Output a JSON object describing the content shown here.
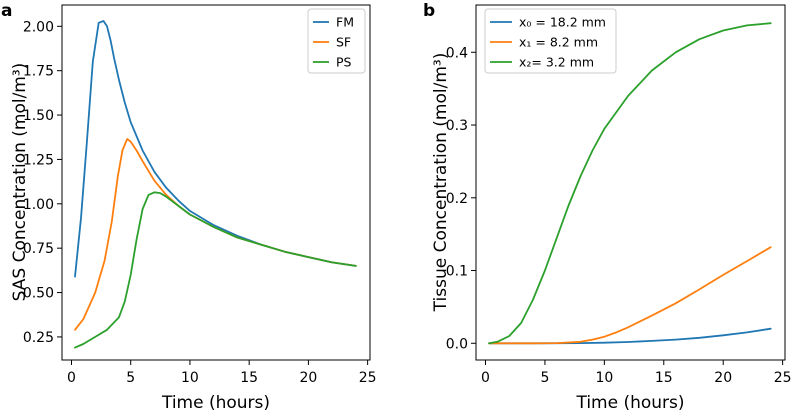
{
  "chart_data": [
    {
      "panel": "a",
      "type": "line",
      "xlabel": "Time (hours)",
      "ylabel": "SAS Concentration (mol/m³)",
      "xlim": [
        -0.8,
        25.2
      ],
      "ylim": [
        0.12,
        2.12
      ],
      "xticks": [
        0,
        5,
        10,
        15,
        20,
        25
      ],
      "xtick_labels": [
        "0",
        "5",
        "10",
        "15",
        "20",
        "25"
      ],
      "yticks": [
        0.25,
        0.5,
        0.75,
        1.0,
        1.25,
        1.5,
        1.75,
        2.0
      ],
      "ytick_labels": [
        "0.25",
        "0.50",
        "0.75",
        "1.00",
        "1.25",
        "1.50",
        "1.75",
        "2.00"
      ],
      "legend_position": "top-right",
      "series": [
        {
          "name": "FM",
          "color": "#1f77b4",
          "x": [
            0.3,
            0.8,
            1.3,
            1.8,
            2.3,
            2.7,
            3.0,
            3.3,
            3.6,
            4.0,
            4.5,
            5.0,
            6.0,
            7.0,
            8.0,
            9.0,
            10.0,
            12.0,
            14.0,
            16.0,
            18.0,
            20.0,
            22.0,
            24.0
          ],
          "y": [
            0.59,
            0.92,
            1.35,
            1.8,
            2.02,
            2.03,
            2.0,
            1.92,
            1.82,
            1.7,
            1.57,
            1.46,
            1.3,
            1.18,
            1.09,
            1.02,
            0.96,
            0.88,
            0.82,
            0.77,
            0.73,
            0.7,
            0.67,
            0.65
          ]
        },
        {
          "name": "SF",
          "color": "#ff7f0e",
          "x": [
            0.3,
            1.0,
            2.0,
            2.8,
            3.4,
            3.9,
            4.3,
            4.7,
            5.0,
            5.5,
            6.0,
            7.0,
            8.0,
            9.0,
            10.0,
            12.0,
            14.0,
            16.0,
            18.0,
            20.0,
            22.0,
            24.0
          ],
          "y": [
            0.29,
            0.35,
            0.5,
            0.68,
            0.9,
            1.15,
            1.3,
            1.365,
            1.35,
            1.3,
            1.24,
            1.13,
            1.05,
            0.99,
            0.94,
            0.87,
            0.81,
            0.77,
            0.73,
            0.7,
            0.67,
            0.65
          ]
        },
        {
          "name": "PS",
          "color": "#2ca02c",
          "x": [
            0.3,
            1.0,
            2.0,
            3.0,
            4.0,
            4.5,
            5.0,
            5.5,
            6.0,
            6.5,
            7.0,
            7.5,
            8.0,
            9.0,
            10.0,
            12.0,
            14.0,
            16.0,
            18.0,
            20.0,
            22.0,
            24.0
          ],
          "y": [
            0.19,
            0.21,
            0.25,
            0.29,
            0.36,
            0.45,
            0.6,
            0.8,
            0.97,
            1.05,
            1.065,
            1.06,
            1.04,
            0.99,
            0.94,
            0.87,
            0.81,
            0.77,
            0.73,
            0.7,
            0.67,
            0.65
          ]
        }
      ]
    },
    {
      "panel": "b",
      "type": "line",
      "xlabel": "Time (hours)",
      "ylabel": "Tissue Concentration (mol/m³)",
      "xlim": [
        -0.8,
        25.2
      ],
      "ylim": [
        -0.023,
        0.465
      ],
      "xticks": [
        0,
        5,
        10,
        15,
        20,
        25
      ],
      "xtick_labels": [
        "0",
        "5",
        "10",
        "15",
        "20",
        "25"
      ],
      "yticks": [
        0.0,
        0.1,
        0.2,
        0.3,
        0.4
      ],
      "ytick_labels": [
        "0.0",
        "0.1",
        "0.2",
        "0.3",
        "0.4"
      ],
      "legend_position": "top-left",
      "series": [
        {
          "name": "x₀ = 18.2 mm",
          "color": "#1f77b4",
          "x": [
            0.3,
            4.0,
            8.0,
            10.0,
            12.0,
            14.0,
            16.0,
            18.0,
            20.0,
            22.0,
            24.0
          ],
          "y": [
            0.0,
            0.0,
            0.0003,
            0.0008,
            0.0018,
            0.0032,
            0.005,
            0.0075,
            0.011,
            0.015,
            0.02
          ]
        },
        {
          "name": "x₁ = 8.2 mm",
          "color": "#ff7f0e",
          "x": [
            0.3,
            4.0,
            6.0,
            8.0,
            9.0,
            10.0,
            11.0,
            12.0,
            14.0,
            16.0,
            18.0,
            20.0,
            22.0,
            24.0
          ],
          "y": [
            0.0,
            0.0,
            0.0003,
            0.002,
            0.005,
            0.009,
            0.015,
            0.022,
            0.038,
            0.055,
            0.074,
            0.094,
            0.113,
            0.132
          ]
        },
        {
          "name": "x₂= 3.2 mm",
          "color": "#2ca02c",
          "x": [
            0.3,
            1.0,
            2.0,
            3.0,
            4.0,
            5.0,
            6.0,
            7.0,
            8.0,
            9.0,
            10.0,
            12.0,
            14.0,
            16.0,
            18.0,
            20.0,
            22.0,
            24.0
          ],
          "y": [
            0.0,
            0.002,
            0.01,
            0.028,
            0.06,
            0.1,
            0.145,
            0.19,
            0.23,
            0.265,
            0.295,
            0.34,
            0.375,
            0.4,
            0.418,
            0.43,
            0.437,
            0.44
          ]
        }
      ]
    }
  ]
}
